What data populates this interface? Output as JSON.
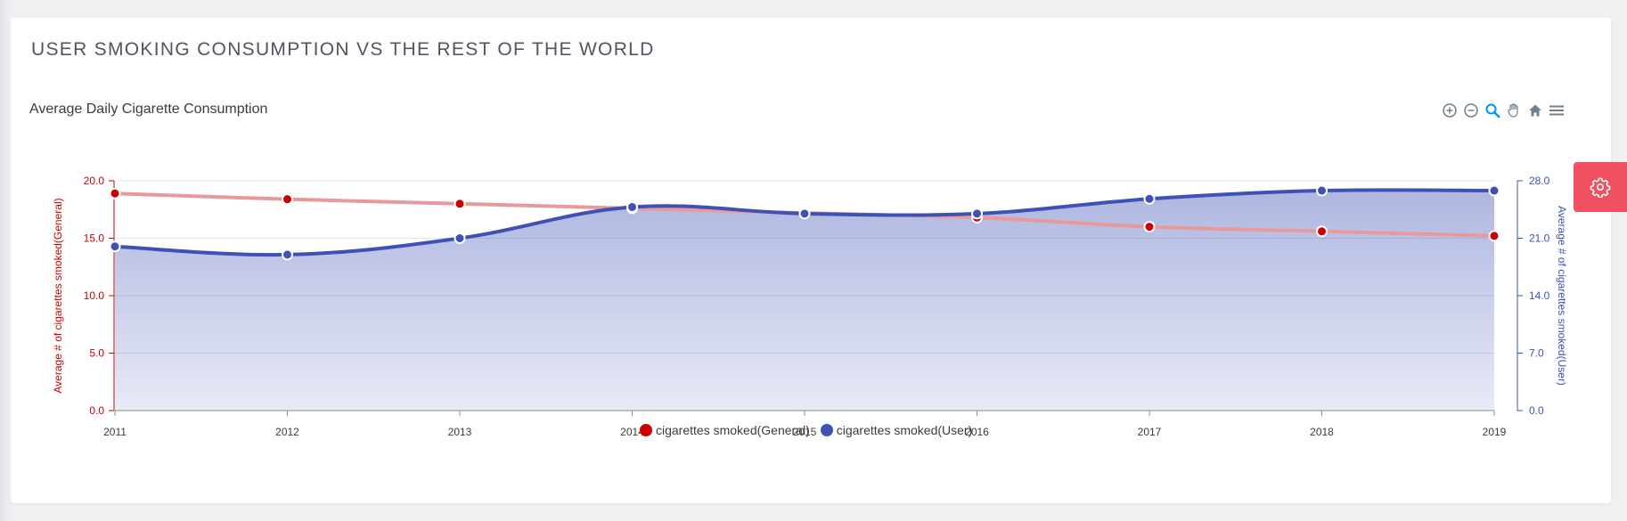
{
  "page": {
    "title": "USER SMOKING CONSUMPTION VS THE REST OF THE WORLD"
  },
  "toolbar": {
    "icons": [
      "zoom-in-icon",
      "zoom-out-icon",
      "zoom-selection-icon",
      "pan-hand-icon",
      "reset-home-icon",
      "menu-icon"
    ],
    "active_color": "#008ffb",
    "inactive_color": "#6e8192"
  },
  "settings": {
    "icon": "gear-icon",
    "color": "#f0505f"
  },
  "chart_data": {
    "type": "line",
    "title": "Average Daily Cigarette Consumption",
    "x": [
      "2011",
      "2012",
      "2013",
      "2014",
      "2015",
      "2016",
      "2017",
      "2018",
      "2019"
    ],
    "series": [
      {
        "name": "cigarettes smoked(General)",
        "axis": "left",
        "color": "#cc0000",
        "line_color": "#e89a9a",
        "values": [
          18.9,
          18.4,
          18.0,
          17.6,
          17.2,
          16.8,
          16.0,
          15.6,
          15.2
        ]
      },
      {
        "name": "cigarettes smoked(User)",
        "axis": "right",
        "color": "#3f51b5",
        "fill": "area",
        "values": [
          20.0,
          19.0,
          21.0,
          24.8,
          24.0,
          24.0,
          25.8,
          26.8,
          26.8
        ]
      }
    ],
    "yaxis_left": {
      "label": "Average # of cigarettes smoked(General)",
      "ylim": [
        0,
        20
      ],
      "ticks": [
        "0.0",
        "5.0",
        "10.0",
        "15.0",
        "20.0"
      ],
      "color": "#cc0000"
    },
    "yaxis_right": {
      "label": "Average # of cigarettes smoked(User)",
      "ylim": [
        0,
        28
      ],
      "ticks": [
        "0.0",
        "7.0",
        "14.0",
        "21.0",
        "28.0"
      ],
      "color": "#3f51b5"
    },
    "grid": true,
    "legend": "bottom-center"
  }
}
